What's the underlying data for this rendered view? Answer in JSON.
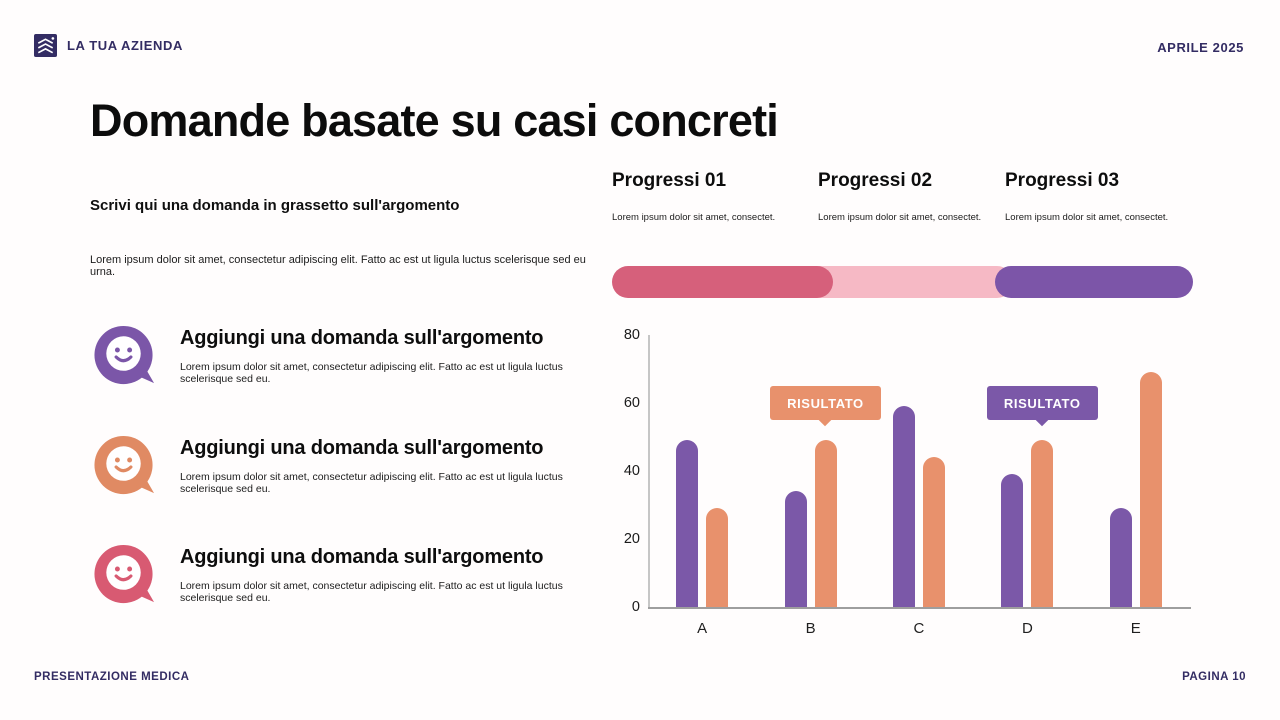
{
  "header": {
    "company": "LA TUA AZIENDA",
    "date": "APRILE 2025"
  },
  "title": "Domande basate su casi concreti",
  "footer": {
    "left": "PRESENTAZIONE MEDICA",
    "right": "PAGINA 10"
  },
  "colors": {
    "navy": "#332c63",
    "purple": "#7b56a8",
    "orange": "#e8916c",
    "dark_pink": "#d6607b",
    "light_pink": "#f6b9c5"
  },
  "left": {
    "question_bold": "Scrivi qui una domanda in grassetto sull'argomento",
    "intro": "Lorem ipsum dolor sit amet, consectetur adipiscing elit. Fatto ac est ut ligula luctus scelerisque sed eu urna.",
    "items": [
      {
        "title": "Aggiungi una domanda sull'argomento",
        "body": "Lorem ipsum dolor sit amet, consectetur adipiscing elit. Fatto ac est ut ligula luctus scelerisque sed eu.",
        "color": "#7b56a8"
      },
      {
        "title": "Aggiungi una domanda sull'argomento",
        "body": "Lorem ipsum dolor sit amet, consectetur adipiscing elit. Fatto ac est ut ligula luctus scelerisque sed eu.",
        "color": "#e08a63"
      },
      {
        "title": "Aggiungi una domanda sull'argomento",
        "body": "Lorem ipsum dolor sit amet, consectetur adipiscing elit. Fatto ac est ut ligula luctus scelerisque sed eu.",
        "color": "#d85a72"
      }
    ]
  },
  "progress": {
    "columns": [
      {
        "title": "Progressi 01",
        "body": "Lorem ipsum dolor sit amet, consectet."
      },
      {
        "title": "Progressi 02",
        "body": "Lorem ipsum dolor sit amet, consectet."
      },
      {
        "title": "Progressi 03",
        "body": "Lorem ipsum dolor sit amet, consectet."
      }
    ],
    "segments": [
      {
        "color": "#f6b9c5",
        "start_pct": 20,
        "end_pct": 69,
        "layer": 1
      },
      {
        "color": "#d6607b",
        "start_pct": 0,
        "end_pct": 38,
        "layer": 2
      },
      {
        "color": "#7c55a8",
        "start_pct": 66,
        "end_pct": 100,
        "layer": 2
      }
    ]
  },
  "chart_data": {
    "type": "bar",
    "categories": [
      "A",
      "B",
      "C",
      "D",
      "E"
    ],
    "series": [
      {
        "name": "purple-series",
        "color": "#7b58a8",
        "values": [
          49,
          34,
          59,
          39,
          29
        ]
      },
      {
        "name": "orange-series",
        "color": "#e8916c",
        "values": [
          29,
          49,
          44,
          49,
          69
        ]
      }
    ],
    "ylim": [
      0,
      80
    ],
    "yticks": [
      0,
      20,
      40,
      60,
      80
    ],
    "grid": false,
    "legend": "none",
    "annotations": [
      {
        "label": "RISULTATO",
        "color": "#e8916c",
        "target_category": "B",
        "target_series": "orange-series"
      },
      {
        "label": "RISULTATO",
        "color": "#7b58a8",
        "target_category": "D",
        "target_series": "orange-series"
      }
    ]
  }
}
